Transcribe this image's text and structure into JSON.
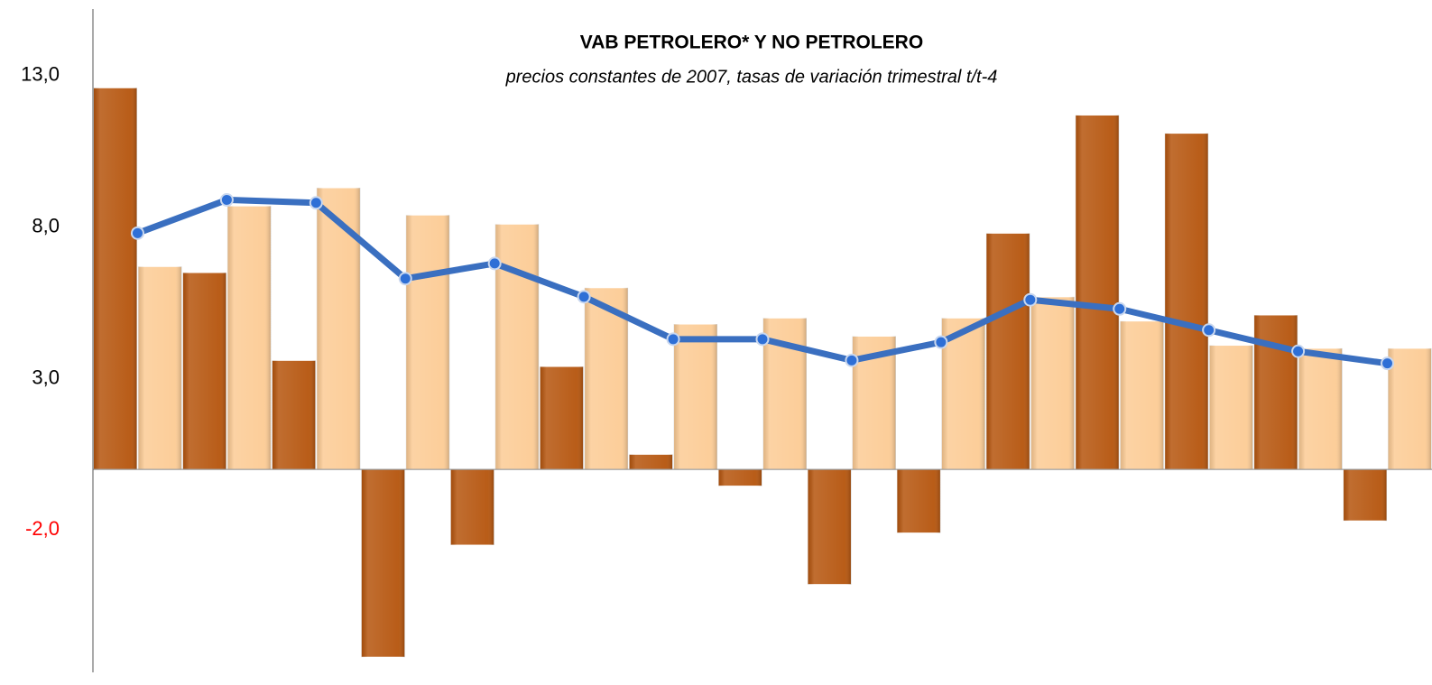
{
  "chart_data": {
    "type": "bar",
    "title": "VAB PETROLERO* Y NO PETROLERO",
    "subtitle": "precios constantes de 2007, tasas de variación trimestral t/t-4",
    "categories": [
      null,
      null,
      null,
      null,
      null,
      null,
      null,
      null,
      null,
      null,
      null,
      null,
      null,
      null,
      null
    ],
    "series": [
      {
        "type": "bar",
        "color": "#b5540c",
        "values": [
          12.6,
          6.5,
          3.6,
          -6.2,
          -2.5,
          3.4,
          0.5,
          -0.55,
          -3.8,
          -2.1,
          7.8,
          11.7,
          11.1,
          5.1,
          -1.7
        ]
      },
      {
        "type": "bar",
        "color": "#fccb94",
        "values": [
          6.7,
          8.7,
          9.3,
          8.4,
          8.1,
          6.0,
          4.8,
          5.0,
          4.4,
          5.0,
          5.7,
          4.9,
          4.1,
          4.0,
          4.0
        ]
      },
      {
        "type": "line",
        "color": "#3a6fc0",
        "values": [
          7.8,
          8.9,
          8.8,
          6.3,
          6.8,
          5.7,
          4.3,
          4.3,
          3.6,
          4.2,
          5.6,
          5.3,
          4.6,
          3.9,
          3.5
        ]
      }
    ],
    "ylim": [
      -6.7,
      15.2
    ],
    "yticks": [
      {
        "value": 13,
        "label": "13,0",
        "color": "#000000"
      },
      {
        "value": 8,
        "label": "8,0",
        "color": "#000000"
      },
      {
        "value": 3,
        "label": "3,0",
        "color": "#000000"
      },
      {
        "value": -2,
        "label": "-2,0",
        "color": "#ff0000"
      }
    ],
    "grid": false
  }
}
